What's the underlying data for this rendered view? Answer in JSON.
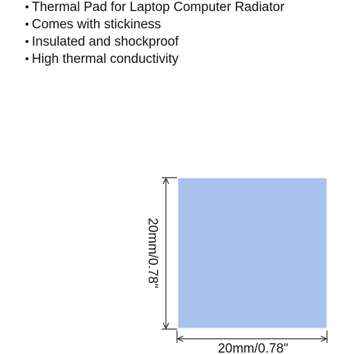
{
  "features": [
    "Thermal Pad for Laptop Computer Radiator",
    "Comes with stickiness",
    "Insulated and shockproof",
    "High thermal conductivity"
  ],
  "dimensions": {
    "height": "20mm/0.78\"",
    "width": "20mm/0.78\""
  }
}
